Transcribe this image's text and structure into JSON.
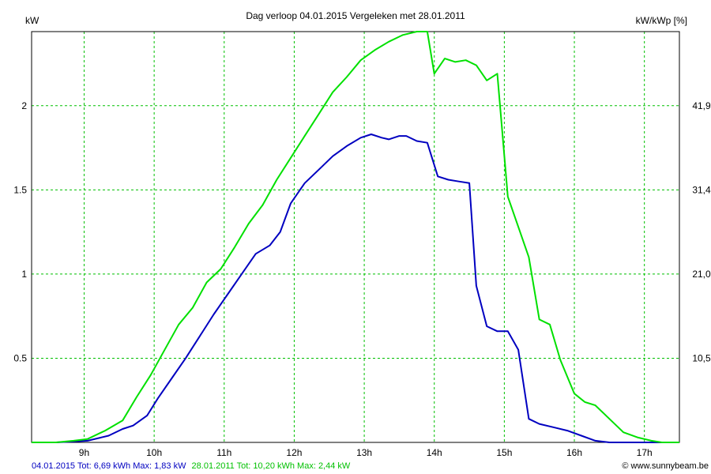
{
  "chart_data": {
    "type": "line",
    "title": "Dag  verloop 04.01.2015   Vergeleken met 28.01.2011",
    "ylabel_left": "kW",
    "ylabel_right": "kW/kWp [%]",
    "xlabel": "",
    "x_range_hours": [
      8.25,
      17.5
    ],
    "ylim": [
      0,
      2.44
    ],
    "x_ticks": [
      {
        "value": 9,
        "label": "9h"
      },
      {
        "value": 10,
        "label": "10h"
      },
      {
        "value": 11,
        "label": "11h"
      },
      {
        "value": 12,
        "label": "12h"
      },
      {
        "value": 13,
        "label": "13h"
      },
      {
        "value": 14,
        "label": "14h"
      },
      {
        "value": 15,
        "label": "15h"
      },
      {
        "value": 16,
        "label": "16h"
      },
      {
        "value": 17,
        "label": "17h"
      }
    ],
    "y_ticks_left": [
      {
        "value": 0.5,
        "label": "0.5"
      },
      {
        "value": 1,
        "label": "1"
      },
      {
        "value": 1.5,
        "label": "1.5"
      },
      {
        "value": 2,
        "label": "2"
      }
    ],
    "y_ticks_right": [
      {
        "value": 0.5,
        "label": "10,5"
      },
      {
        "value": 1,
        "label": "21,0"
      },
      {
        "value": 1.5,
        "label": "31,4"
      },
      {
        "value": 2,
        "label": "41,9"
      }
    ],
    "grid": true,
    "series": [
      {
        "name": "04.01.2015 Tot: 6,69 kWh Max: 1,83 kW",
        "color": "#0000c0",
        "points": [
          [
            8.25,
            0
          ],
          [
            8.6,
            0
          ],
          [
            8.85,
            0.005
          ],
          [
            9.05,
            0.01
          ],
          [
            9.35,
            0.04
          ],
          [
            9.55,
            0.08
          ],
          [
            9.7,
            0.1
          ],
          [
            9.9,
            0.16
          ],
          [
            10.05,
            0.26
          ],
          [
            10.25,
            0.38
          ],
          [
            10.45,
            0.5
          ],
          [
            10.65,
            0.63
          ],
          [
            10.85,
            0.76
          ],
          [
            11.05,
            0.88
          ],
          [
            11.25,
            1.0
          ],
          [
            11.45,
            1.12
          ],
          [
            11.65,
            1.17
          ],
          [
            11.8,
            1.25
          ],
          [
            11.95,
            1.42
          ],
          [
            12.15,
            1.54
          ],
          [
            12.35,
            1.62
          ],
          [
            12.55,
            1.7
          ],
          [
            12.75,
            1.76
          ],
          [
            12.95,
            1.81
          ],
          [
            13.1,
            1.83
          ],
          [
            13.25,
            1.81
          ],
          [
            13.35,
            1.8
          ],
          [
            13.5,
            1.82
          ],
          [
            13.6,
            1.82
          ],
          [
            13.75,
            1.79
          ],
          [
            13.9,
            1.78
          ],
          [
            14.05,
            1.58
          ],
          [
            14.2,
            1.56
          ],
          [
            14.35,
            1.55
          ],
          [
            14.5,
            1.54
          ],
          [
            14.6,
            0.93
          ],
          [
            14.75,
            0.69
          ],
          [
            14.9,
            0.66
          ],
          [
            15.05,
            0.66
          ],
          [
            15.2,
            0.55
          ],
          [
            15.35,
            0.14
          ],
          [
            15.5,
            0.11
          ],
          [
            15.7,
            0.09
          ],
          [
            15.9,
            0.07
          ],
          [
            16.1,
            0.04
          ],
          [
            16.3,
            0.01
          ],
          [
            16.5,
            0
          ],
          [
            17.5,
            0
          ]
        ]
      },
      {
        "name": "28.01.2011 Tot: 10,20 kWh Max: 2,44 kW",
        "color": "#00e000",
        "points": [
          [
            8.25,
            0
          ],
          [
            8.6,
            0
          ],
          [
            8.85,
            0.01
          ],
          [
            9.05,
            0.02
          ],
          [
            9.3,
            0.07
          ],
          [
            9.55,
            0.13
          ],
          [
            9.75,
            0.27
          ],
          [
            9.95,
            0.4
          ],
          [
            10.15,
            0.55
          ],
          [
            10.35,
            0.7
          ],
          [
            10.55,
            0.8
          ],
          [
            10.75,
            0.95
          ],
          [
            10.95,
            1.03
          ],
          [
            11.15,
            1.16
          ],
          [
            11.35,
            1.3
          ],
          [
            11.55,
            1.41
          ],
          [
            11.75,
            1.56
          ],
          [
            11.95,
            1.69
          ],
          [
            12.15,
            1.82
          ],
          [
            12.35,
            1.95
          ],
          [
            12.55,
            2.08
          ],
          [
            12.75,
            2.17
          ],
          [
            12.95,
            2.27
          ],
          [
            13.15,
            2.33
          ],
          [
            13.35,
            2.38
          ],
          [
            13.55,
            2.42
          ],
          [
            13.75,
            2.44
          ],
          [
            13.9,
            2.44
          ],
          [
            14.0,
            2.19
          ],
          [
            14.15,
            2.28
          ],
          [
            14.3,
            2.26
          ],
          [
            14.45,
            2.27
          ],
          [
            14.6,
            2.24
          ],
          [
            14.75,
            2.15
          ],
          [
            14.9,
            2.19
          ],
          [
            15.05,
            1.46
          ],
          [
            15.2,
            1.28
          ],
          [
            15.35,
            1.1
          ],
          [
            15.5,
            0.73
          ],
          [
            15.65,
            0.7
          ],
          [
            15.8,
            0.49
          ],
          [
            16.0,
            0.29
          ],
          [
            16.15,
            0.24
          ],
          [
            16.3,
            0.22
          ],
          [
            16.5,
            0.14
          ],
          [
            16.7,
            0.06
          ],
          [
            16.9,
            0.03
          ],
          [
            17.1,
            0.01
          ],
          [
            17.25,
            0
          ],
          [
            17.5,
            0
          ]
        ]
      }
    ]
  },
  "footer": {
    "legend_series_1": "04.01.2015 Tot: 6,69 kWh Max: 1,83 kW",
    "legend_series_2": "28.01.2011 Tot: 10,20 kWh Max: 2,44 kW",
    "credit": "© www.sunnybeam.be"
  }
}
